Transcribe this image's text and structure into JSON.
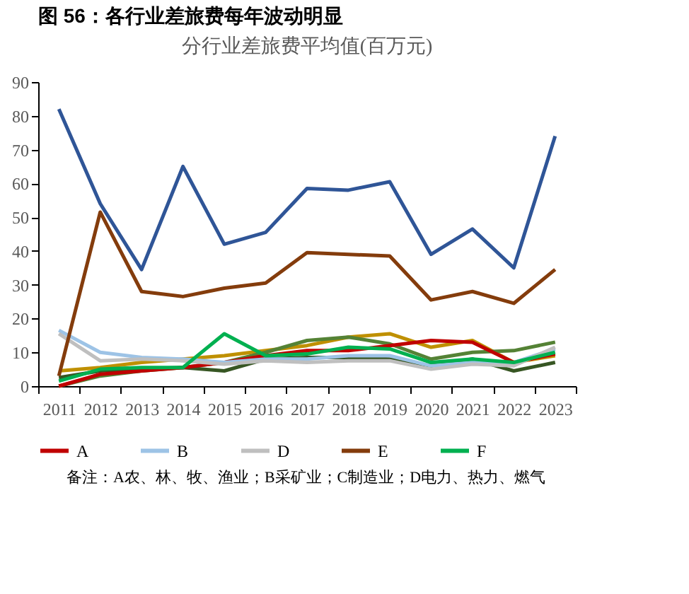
{
  "chart_data": {
    "type": "line",
    "title": "图 56：各行业差旅费每年波动明显",
    "subtitle": "分行业差旅费平均值(百万元)",
    "categories": [
      "2011",
      "2012",
      "2013",
      "2014",
      "2015",
      "2016",
      "2017",
      "2018",
      "2019",
      "2020",
      "2021",
      "2022",
      "2023"
    ],
    "series": [
      {
        "color": "#2f5597",
        "values": [
          82,
          54,
          34.5,
          65,
          42,
          45.5,
          58.5,
          58,
          60.5,
          39,
          46.5,
          35,
          74
        ]
      },
      {
        "color": "#bf9000",
        "values": [
          4.5,
          5.5,
          7,
          8,
          9,
          10.5,
          12,
          14.5,
          15.5,
          11.5,
          13.5,
          7,
          9
        ]
      },
      {
        "color": "#548235",
        "values": [
          0,
          3,
          4.5,
          5.5,
          7,
          10,
          13.5,
          14.5,
          12.5,
          8,
          10,
          10.5,
          13
        ]
      },
      {
        "color": "#375623",
        "values": [
          2.5,
          4.5,
          5,
          5.5,
          4.5,
          8,
          8.5,
          8.5,
          8,
          6,
          8,
          4.5,
          7
        ]
      },
      {
        "name": "A",
        "color": "#c00000",
        "values": [
          0,
          3.5,
          4.5,
          5.5,
          7,
          9,
          10.5,
          10.5,
          12,
          13.5,
          13,
          7,
          9.5
        ]
      },
      {
        "name": "B",
        "color": "#9dc3e6",
        "values": [
          16.5,
          10,
          8.5,
          8,
          7,
          8,
          8,
          9,
          9,
          6,
          7,
          7,
          11
        ]
      },
      {
        "name": "D",
        "color": "#bfbfbf",
        "values": [
          15.5,
          7.5,
          8,
          7.5,
          6.5,
          7.5,
          7,
          7.5,
          7.5,
          5,
          6.5,
          6,
          11.5
        ]
      },
      {
        "name": "E",
        "color": "#843c0c",
        "values": [
          3,
          51.5,
          28,
          26.5,
          29,
          30.5,
          39.5,
          39,
          38.5,
          25.5,
          28,
          24.5,
          34.5
        ]
      },
      {
        "name": "F",
        "color": "#00b050",
        "values": [
          1.5,
          5,
          5.5,
          5.5,
          15.5,
          9,
          9.5,
          11.5,
          11,
          7,
          8,
          7,
          10
        ]
      }
    ],
    "ylim": [
      0,
      90
    ],
    "yticks": [
      0,
      10,
      20,
      30,
      40,
      50,
      60,
      70,
      80,
      90
    ],
    "legend": "bottom",
    "annotations": [
      "备注：A农、林、牧、渔业；B采矿业；C制造业；D电力、热力、燃气"
    ]
  }
}
